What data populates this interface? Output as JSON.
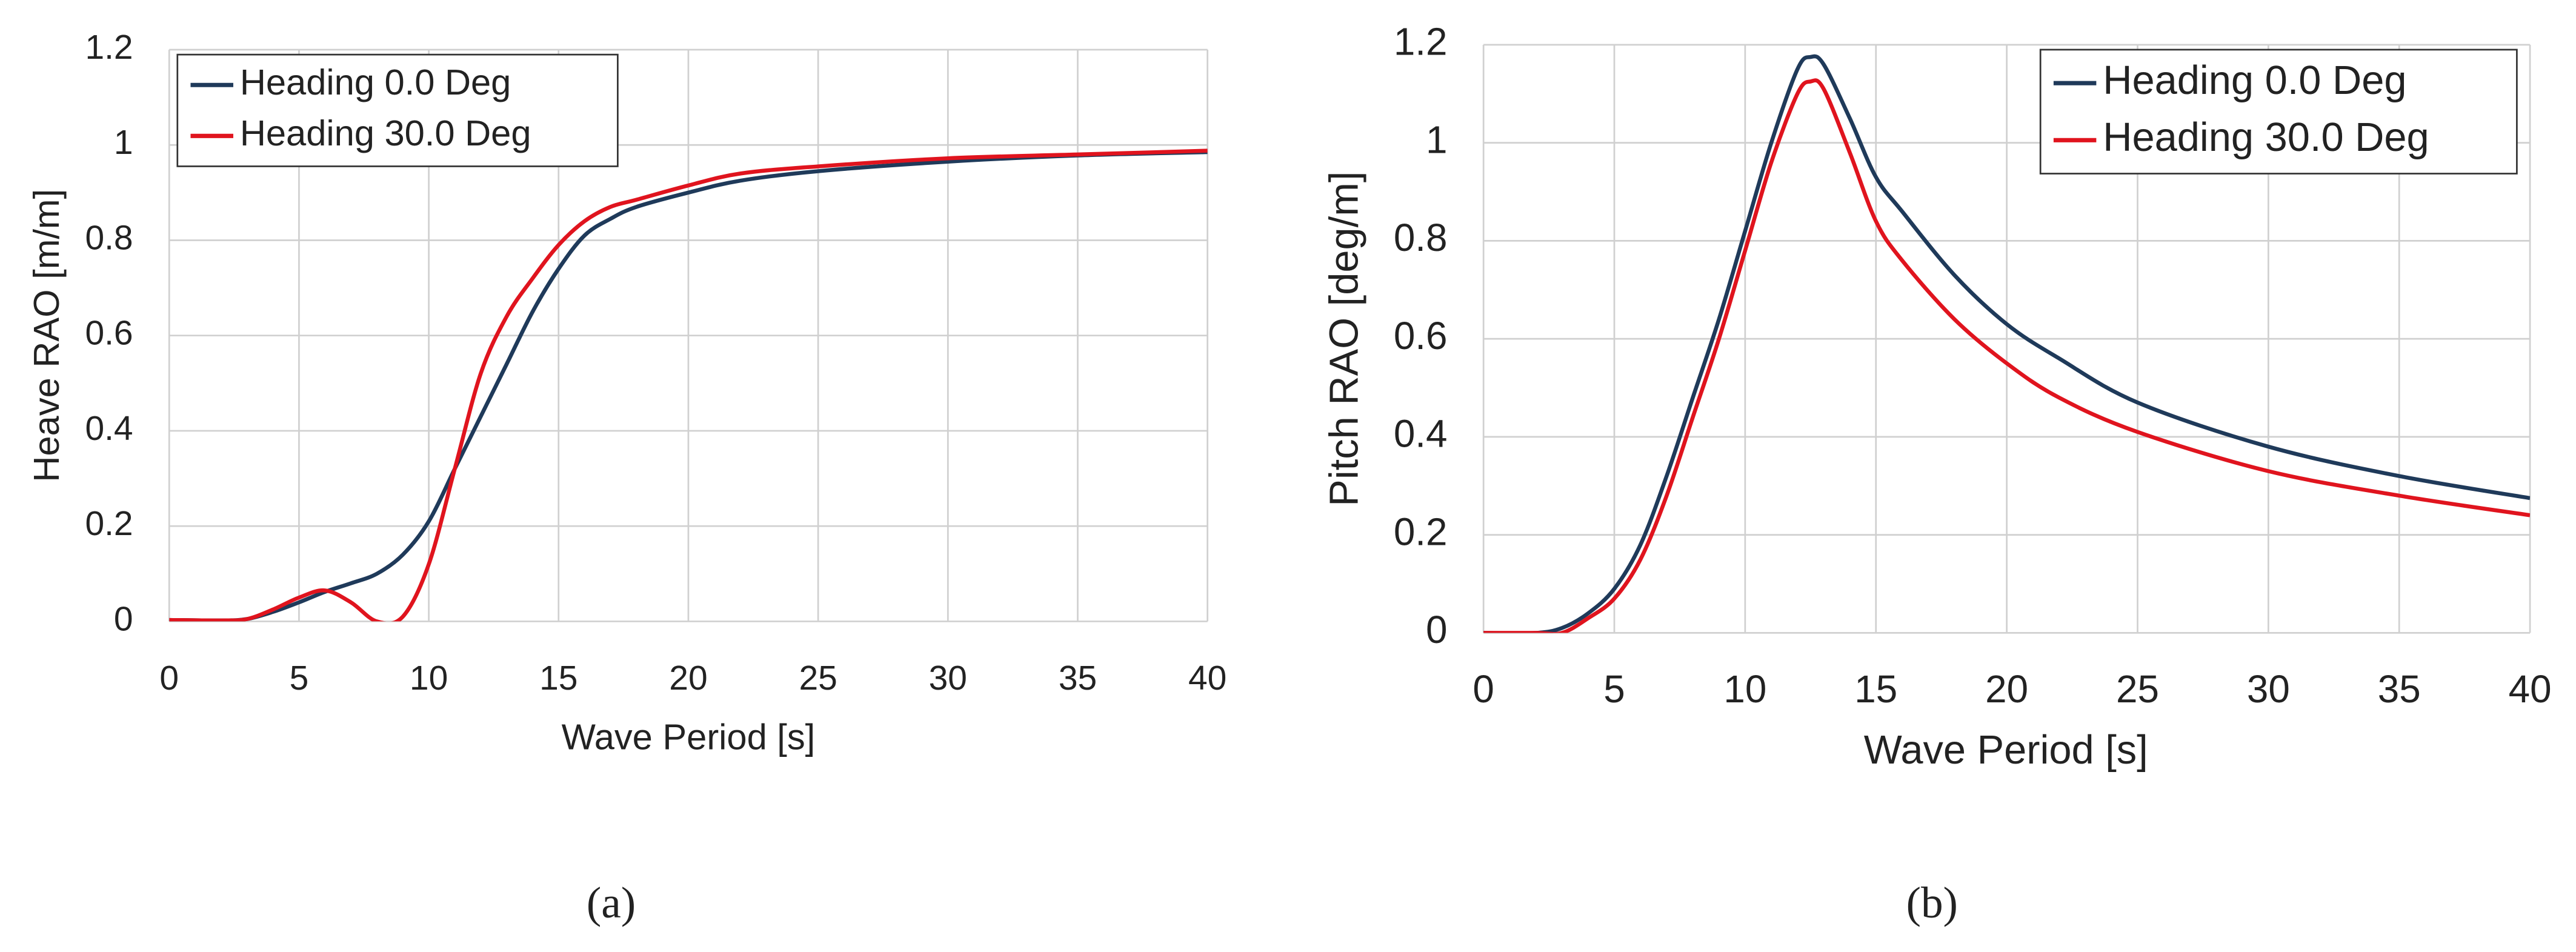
{
  "chart_data": [
    {
      "type": "line",
      "caption": "(a)",
      "x_label": "Wave Period [s]",
      "y_label": "Heave RAO [m/m]",
      "x": [
        0,
        2,
        3,
        4,
        5,
        6,
        7,
        8,
        9,
        10,
        11,
        12,
        13,
        14,
        15,
        16,
        17,
        18,
        20,
        22,
        25,
        30,
        35,
        40
      ],
      "series": [
        {
          "name": "Heading 0.0 Deg",
          "color": "#1f3a5a",
          "values": [
            0.003,
            0.002,
            0.005,
            0.02,
            0.04,
            0.062,
            0.08,
            0.1,
            0.14,
            0.21,
            0.32,
            0.43,
            0.54,
            0.65,
            0.74,
            0.81,
            0.845,
            0.87,
            0.9,
            0.925,
            0.945,
            0.965,
            0.978,
            0.985
          ]
        },
        {
          "name": "Heading 30.0 Deg",
          "color": "#e0141e",
          "values": [
            0.003,
            0.002,
            0.005,
            0.025,
            0.05,
            0.065,
            0.04,
            0.0,
            0.01,
            0.12,
            0.32,
            0.52,
            0.64,
            0.72,
            0.79,
            0.84,
            0.87,
            0.885,
            0.915,
            0.94,
            0.955,
            0.972,
            0.98,
            0.988
          ]
        }
      ],
      "xlim": [
        0,
        40
      ],
      "ylim": [
        0,
        1.2
      ],
      "xticks": [
        0,
        5,
        10,
        15,
        20,
        25,
        30,
        35,
        40
      ],
      "yticks": [
        0,
        0.2,
        0.4,
        0.6,
        0.8,
        1,
        1.2
      ],
      "grid": true,
      "legend": "upper left"
    },
    {
      "type": "line",
      "caption": "(b)",
      "x_label": "Wave Period [s]",
      "y_label": "Pitch RAO [deg/m]",
      "x": [
        0,
        2,
        3,
        4,
        5,
        6,
        7,
        8,
        9,
        10,
        11,
        12,
        12.5,
        13,
        14,
        15,
        16,
        18,
        20,
        22,
        25,
        30,
        35,
        40
      ],
      "series": [
        {
          "name": "Heading 0.0 Deg",
          "color": "#1f3a5a",
          "values": [
            0.0,
            0.0,
            0.01,
            0.04,
            0.09,
            0.18,
            0.32,
            0.48,
            0.64,
            0.82,
            1.0,
            1.15,
            1.175,
            1.16,
            1.05,
            0.93,
            0.86,
            0.73,
            0.63,
            0.56,
            0.47,
            0.38,
            0.32,
            0.275
          ]
        },
        {
          "name": "Heading 30.0 Deg",
          "color": "#e0141e",
          "values": [
            0.0,
            0.0,
            0.0,
            0.03,
            0.07,
            0.15,
            0.28,
            0.44,
            0.6,
            0.78,
            0.96,
            1.1,
            1.125,
            1.11,
            0.98,
            0.84,
            0.76,
            0.64,
            0.55,
            0.48,
            0.41,
            0.33,
            0.28,
            0.24
          ]
        }
      ],
      "xlim": [
        0,
        40
      ],
      "ylim": [
        0,
        1.2
      ],
      "xticks": [
        0,
        5,
        10,
        15,
        20,
        25,
        30,
        35,
        40
      ],
      "yticks": [
        0,
        0.2,
        0.4,
        0.6,
        0.8,
        1,
        1.2
      ],
      "grid": true,
      "legend": "upper right"
    }
  ]
}
